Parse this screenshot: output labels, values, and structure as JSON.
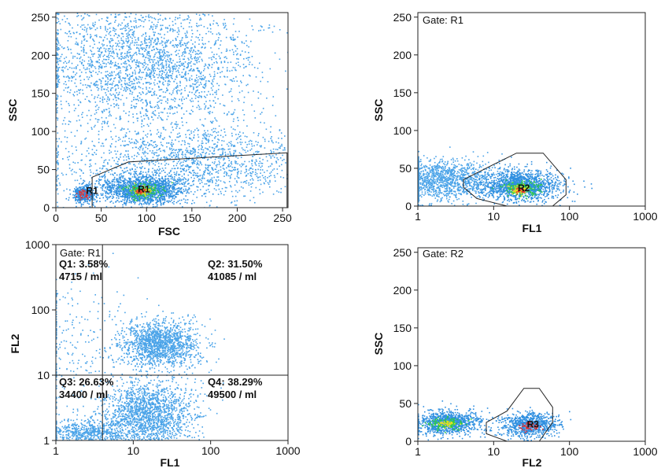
{
  "chart_data": [
    {
      "type": "scatter",
      "title": "",
      "xlabel": "FSC",
      "ylabel": "SSC",
      "xscale": "linear",
      "yscale": "linear",
      "xlim": [
        0,
        256
      ],
      "ylim": [
        0,
        256
      ],
      "xticks": [
        0,
        50,
        100,
        150,
        200,
        250
      ],
      "yticks": [
        0,
        50,
        100,
        150,
        200,
        250
      ],
      "gate_label": "",
      "points": [
        {
          "x": 100,
          "y": 190,
          "sx": 60,
          "sy": 45,
          "n": 2600,
          "color": "#4aa3e8"
        },
        {
          "x": 150,
          "y": 60,
          "sx": 70,
          "sy": 25,
          "n": 1600,
          "color": "#4aa3e8"
        },
        {
          "x": 95,
          "y": 24,
          "sx": 22,
          "sy": 9,
          "n": 1500,
          "color": "#2f8fe0"
        },
        {
          "x": 30,
          "y": 18,
          "sx": 6,
          "sy": 6,
          "n": 400,
          "color": "#2f8fe0"
        },
        {
          "x": 95,
          "y": 23,
          "sx": 10,
          "sy": 5,
          "n": 160,
          "color": "#2ecc40"
        },
        {
          "x": 95,
          "y": 22,
          "sx": 5,
          "sy": 3,
          "n": 70,
          "color": "#e8e020"
        },
        {
          "x": 93,
          "y": 22,
          "sx": 3,
          "sy": 2,
          "n": 35,
          "color": "#e03030"
        },
        {
          "x": 30,
          "y": 18,
          "sx": 3,
          "sy": 3,
          "n": 40,
          "color": "#e03030"
        }
      ],
      "gates": [
        {
          "label": "R1",
          "points": [
            [
              40,
              0
            ],
            [
              40,
              40
            ],
            [
              80,
              60
            ],
            [
              255,
              72
            ],
            [
              255,
              0
            ]
          ]
        }
      ],
      "region_labels": [
        {
          "label": "R1",
          "x": 40,
          "y": 18
        },
        {
          "label": "R1",
          "x": 97,
          "y": 20
        }
      ],
      "quadrants": null
    },
    {
      "type": "scatter",
      "title": "",
      "xlabel": "FL1",
      "ylabel": "SSC",
      "xscale": "log",
      "yscale": "linear",
      "xlim": [
        1,
        1000
      ],
      "ylim": [
        0,
        256
      ],
      "xticks": [
        1,
        10,
        100,
        1000
      ],
      "yticks": [
        0,
        50,
        100,
        150,
        200,
        250
      ],
      "gate_label": "Gate: R1",
      "points": [
        {
          "x": 2,
          "y": 35,
          "sx": 0.35,
          "sy": 14,
          "n": 1400,
          "color": "#4aa3e8"
        },
        {
          "x": 22,
          "y": 28,
          "sx": 0.25,
          "sy": 10,
          "n": 1400,
          "color": "#2f8fe0"
        },
        {
          "x": 22,
          "y": 24,
          "sx": 0.12,
          "sy": 5,
          "n": 180,
          "color": "#2ecc40"
        },
        {
          "x": 22,
          "y": 23,
          "sx": 0.07,
          "sy": 3,
          "n": 60,
          "color": "#e8e020"
        },
        {
          "x": 22,
          "y": 22,
          "sx": 0.04,
          "sy": 2,
          "n": 30,
          "color": "#e03030"
        }
      ],
      "gates": [
        {
          "label": "R2",
          "points": [
            [
              4,
              25
            ],
            [
              4,
              35
            ],
            [
              10,
              55
            ],
            [
              20,
              70
            ],
            [
              45,
              70
            ],
            [
              90,
              35
            ],
            [
              90,
              15
            ],
            [
              60,
              0
            ],
            [
              15,
              0
            ],
            [
              6,
              10
            ]
          ]
        }
      ],
      "region_labels": [
        {
          "label": "R2",
          "x": 25,
          "y": 20
        }
      ],
      "quadrants": null
    },
    {
      "type": "scatter",
      "title": "",
      "xlabel": "FL1",
      "ylabel": "FL2",
      "xscale": "log",
      "yscale": "log",
      "xlim": [
        1,
        1000
      ],
      "ylim": [
        1,
        1000
      ],
      "xticks": [
        1,
        10,
        100,
        1000
      ],
      "yticks": [
        1,
        10,
        100,
        1000
      ],
      "gate_label": "Gate: R1",
      "points": [
        {
          "x": 22,
          "y": 30,
          "sx": 0.25,
          "sy": 0.18,
          "n": 1500,
          "color": "#4aa3e8"
        },
        {
          "x": 15,
          "y": 2.5,
          "sx": 0.3,
          "sy": 0.25,
          "n": 1800,
          "color": "#4aa3e8"
        },
        {
          "x": 2.5,
          "y": 1.3,
          "sx": 0.25,
          "sy": 0.1,
          "n": 600,
          "color": "#4aa3e8"
        },
        {
          "x": 1.5,
          "y": 30,
          "sx": 0.35,
          "sy": 0.6,
          "n": 250,
          "color": "#4aa3e8"
        }
      ],
      "gates": [],
      "region_labels": [],
      "quadrants": {
        "x": 4,
        "y": 10,
        "labels": [
          {
            "pos": "top-left",
            "text": "Q1: 3.58%",
            "count": "4715 / ml"
          },
          {
            "pos": "top-right",
            "text": "Q2: 31.50%",
            "count": "41085 / ml"
          },
          {
            "pos": "bottom-left",
            "text": "Q3: 26.63%",
            "count": "34400 / ml"
          },
          {
            "pos": "bottom-right",
            "text": "Q4: 38.29%",
            "count": "49500 / ml"
          }
        ]
      }
    },
    {
      "type": "scatter",
      "title": "",
      "xlabel": "FL2",
      "ylabel": "SSC",
      "xscale": "log",
      "yscale": "linear",
      "xlim": [
        1,
        1000
      ],
      "ylim": [
        0,
        256
      ],
      "xticks": [
        1,
        10,
        100,
        1000
      ],
      "yticks": [
        0,
        50,
        100,
        150,
        200,
        250
      ],
      "gate_label": "Gate: R2",
      "points": [
        {
          "x": 2.4,
          "y": 25,
          "sx": 0.22,
          "sy": 8,
          "n": 1000,
          "color": "#2f8fe0"
        },
        {
          "x": 30,
          "y": 22,
          "sx": 0.18,
          "sy": 8,
          "n": 800,
          "color": "#2f8fe0"
        },
        {
          "x": 2.4,
          "y": 24,
          "sx": 0.12,
          "sy": 4,
          "n": 120,
          "color": "#2ecc40"
        },
        {
          "x": 2.4,
          "y": 24,
          "sx": 0.07,
          "sy": 2,
          "n": 40,
          "color": "#e8e020"
        },
        {
          "x": 30,
          "y": 20,
          "sx": 0.07,
          "sy": 3,
          "n": 60,
          "color": "#e03030"
        }
      ],
      "gates": [
        {
          "label": "R3",
          "points": [
            [
              8,
              10
            ],
            [
              8,
              25
            ],
            [
              15,
              40
            ],
            [
              25,
              70
            ],
            [
              40,
              70
            ],
            [
              60,
              45
            ],
            [
              60,
              25
            ],
            [
              40,
              0
            ],
            [
              15,
              0
            ]
          ]
        }
      ],
      "region_labels": [
        {
          "label": "R3",
          "x": 33,
          "y": 18
        }
      ],
      "quadrants": null
    }
  ]
}
